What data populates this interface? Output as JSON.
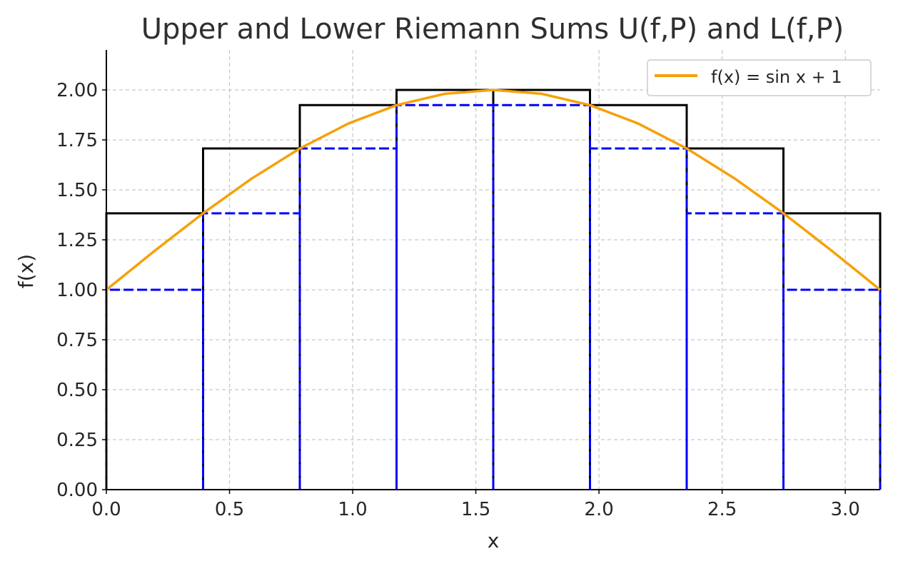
{
  "chart_data": {
    "type": "line",
    "title": "Upper and Lower Riemann Sums U(f,P) and L(f,P)",
    "xlabel": "x",
    "ylabel": "f(x)",
    "xlim": [
      0,
      3.14159
    ],
    "ylim": [
      0,
      2.2
    ],
    "x_ticks": [
      "0.0",
      "0.5",
      "1.0",
      "1.5",
      "2.0",
      "2.5",
      "3.0"
    ],
    "x_tick_values": [
      0,
      0.5,
      1.0,
      1.5,
      2.0,
      2.5,
      3.0
    ],
    "y_ticks": [
      "0.00",
      "0.25",
      "0.50",
      "0.75",
      "1.00",
      "1.25",
      "1.50",
      "1.75",
      "2.00"
    ],
    "y_tick_values": [
      0,
      0.25,
      0.5,
      0.75,
      1.0,
      1.25,
      1.5,
      1.75,
      2.0
    ],
    "grid": true,
    "legend_position": "top-right",
    "function": {
      "name": "f(x) = sin x + 1",
      "color": "#f5a10a",
      "x": [
        0,
        0.1963,
        0.3927,
        0.589,
        0.7854,
        0.9817,
        1.1781,
        1.3744,
        1.5708,
        1.7671,
        1.9635,
        2.1598,
        2.3562,
        2.5525,
        2.7489,
        2.9452,
        3.1416
      ],
      "y": [
        1.0,
        1.1951,
        1.3827,
        1.5556,
        1.7071,
        1.8315,
        1.9239,
        1.9808,
        2.0,
        1.9808,
        1.9239,
        1.8315,
        1.7071,
        1.5556,
        1.3827,
        1.1951,
        1.0
      ]
    },
    "partition": [
      0,
      0.3927,
      0.7854,
      1.1781,
      1.5708,
      1.9635,
      2.3562,
      2.7489,
      3.1416
    ],
    "upper_sum": {
      "color": "#000000",
      "values": [
        1.3827,
        1.7071,
        1.9239,
        2.0,
        2.0,
        1.9239,
        1.7071,
        1.3827
      ]
    },
    "lower_sum": {
      "color": "#0000ff",
      "values": [
        1.0,
        1.3827,
        1.7071,
        1.9239,
        1.9239,
        1.7071,
        1.3827,
        1.0
      ]
    }
  }
}
